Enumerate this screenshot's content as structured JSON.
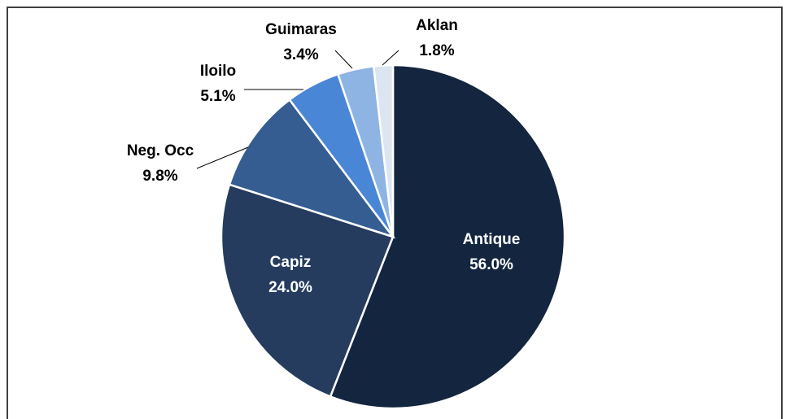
{
  "chart_data": {
    "type": "pie",
    "categories": [
      "Antique",
      "Capiz",
      "Neg. Occ",
      "Iloilo",
      "Guimaras",
      "Aklan"
    ],
    "values": [
      56.0,
      24.0,
      9.8,
      5.1,
      3.4,
      1.8
    ],
    "value_labels": [
      "56.0%",
      "24.0%",
      "9.8%",
      "5.1%",
      "3.4%",
      "1.8%"
    ],
    "colors": [
      "#13253f",
      "#253c5e",
      "#355d91",
      "#4a86d6",
      "#8eb4e3",
      "#dce6f2"
    ]
  }
}
